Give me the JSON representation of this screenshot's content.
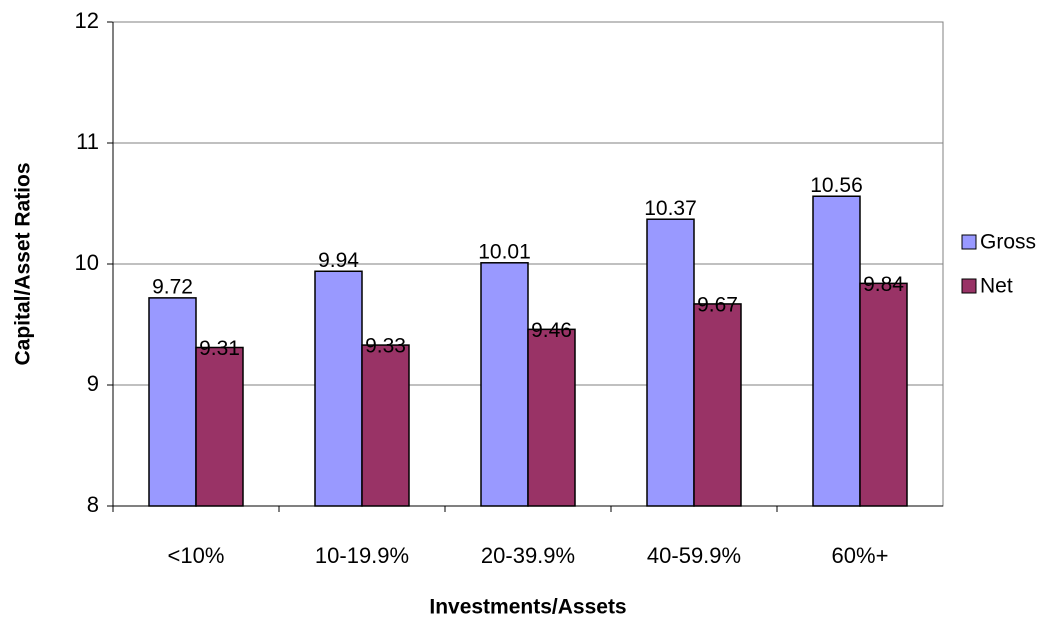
{
  "chart_data": {
    "type": "bar",
    "x_label": "Investments/Assets",
    "y_label": "Capital/Asset Ratios",
    "categories": [
      "<10%",
      "10-19.9%",
      "20-39.9%",
      "40-59.9%",
      "60%+"
    ],
    "series": [
      {
        "name": "Gross",
        "color": "#9999ff",
        "values": [
          9.72,
          9.94,
          10.01,
          10.37,
          10.56
        ]
      },
      {
        "name": "Net",
        "color": "#993366",
        "values": [
          9.31,
          9.33,
          9.46,
          9.67,
          9.84
        ]
      }
    ],
    "ylim": [
      8,
      12
    ],
    "yticks": [
      8,
      9,
      10,
      11,
      12
    ],
    "grid": true,
    "legend": "right"
  }
}
